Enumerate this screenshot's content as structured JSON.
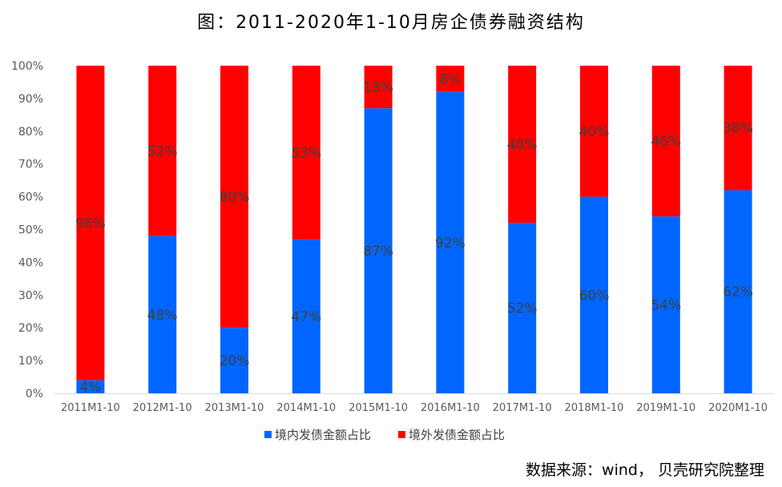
{
  "chart_data": {
    "type": "bar",
    "stacked": "percent",
    "title": "图：2011-2020年1-10月房企债券融资结构",
    "categories": [
      "2011M1-10",
      "2012M1-10",
      "2013M1-10",
      "2014M1-10",
      "2015M1-10",
      "2016M1-10",
      "2017M1-10",
      "2018M1-10",
      "2019M1-10",
      "2020M1-10"
    ],
    "series": [
      {
        "name": "境内发债金额占比",
        "color": "#0066FF",
        "values": [
          4,
          48,
          20,
          47,
          87,
          92,
          52,
          60,
          54,
          62
        ],
        "labels": [
          "4%",
          "48%",
          "20%",
          "47%",
          "87%",
          "92%",
          "52%",
          "60%",
          "54%",
          "62%"
        ]
      },
      {
        "name": "境外发债金额占比",
        "color": "#FF0000",
        "values": [
          96,
          52,
          80,
          53,
          13,
          8,
          48,
          40,
          46,
          38
        ],
        "labels": [
          "96%",
          "52%",
          "80%",
          "53%",
          "13%",
          "8%",
          "48%",
          "40%",
          "46%",
          "38%"
        ]
      }
    ],
    "ylim": [
      0,
      100
    ],
    "yticks": [
      "0%",
      "10%",
      "20%",
      "30%",
      "40%",
      "50%",
      "60%",
      "70%",
      "80%",
      "90%",
      "100%"
    ],
    "grid": false,
    "legend_position": "bottom"
  },
  "source": "数据来源：wind， 贝壳研究院整理"
}
